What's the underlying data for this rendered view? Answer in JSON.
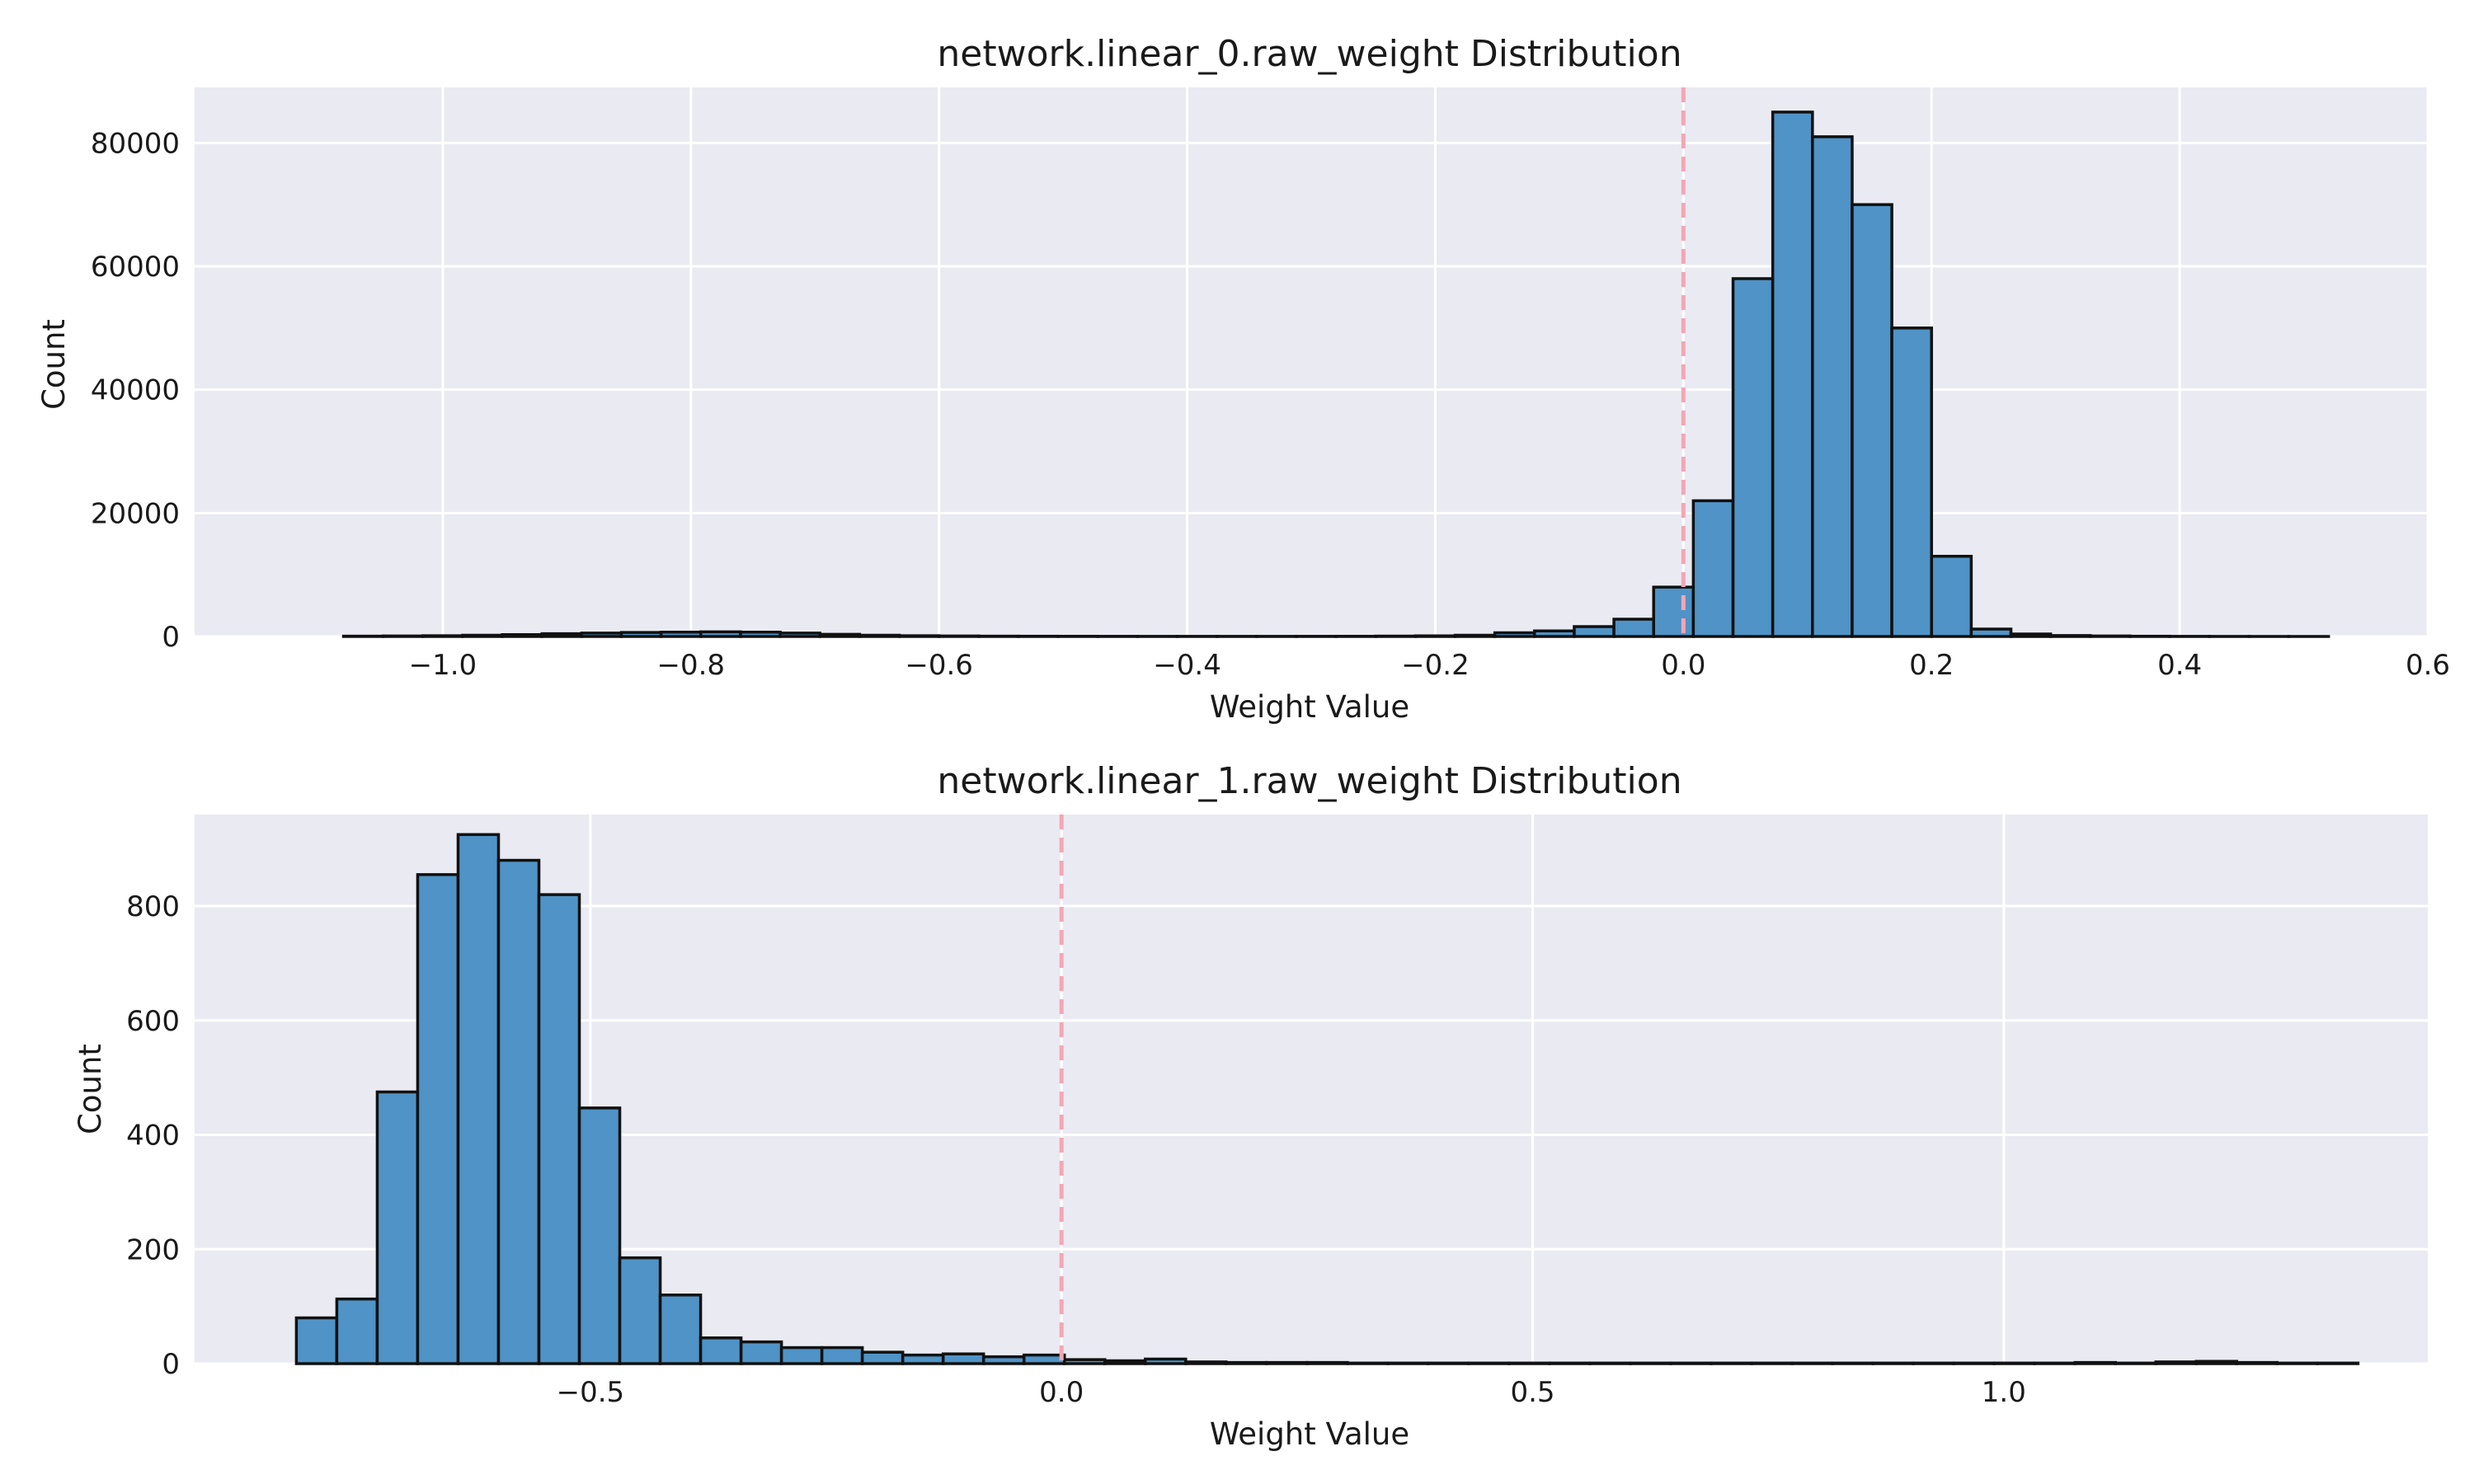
{
  "chart_data": [
    {
      "type": "bar",
      "title": "network.linear_0.raw_weight Distribution",
      "xlabel": "Weight Value",
      "ylabel": "Count",
      "xlim": [
        -1.2,
        0.6
      ],
      "ylim": [
        0,
        89000
      ],
      "xticks": [
        -1.0,
        -0.8,
        -0.6,
        -0.4,
        -0.2,
        0.0,
        0.2,
        0.4,
        0.6
      ],
      "xtick_labels": [
        "−1.0",
        "−0.8",
        "−0.6",
        "−0.4",
        "−0.2",
        "0.0",
        "0.2",
        "0.4",
        "0.6"
      ],
      "yticks": [
        0,
        20000,
        40000,
        60000,
        80000
      ],
      "ytick_labels": [
        "0",
        "20000",
        "40000",
        "60000",
        "80000"
      ],
      "grid": true,
      "reference_line": {
        "x": 0.0,
        "style": "dashed",
        "color": "#f4a6b4"
      },
      "bar_color": "#4f93c7",
      "bins": {
        "start": -1.08,
        "width": 0.032,
        "values": [
          50,
          80,
          120,
          200,
          300,
          450,
          550,
          650,
          700,
          750,
          700,
          550,
          350,
          200,
          120,
          80,
          50,
          40,
          30,
          25,
          20,
          20,
          20,
          20,
          25,
          30,
          60,
          100,
          200,
          600,
          900,
          1600,
          2800,
          8000,
          22000,
          58000,
          85000,
          81000,
          70000,
          50000,
          13000,
          1200,
          400,
          150,
          80,
          40,
          20,
          10,
          5,
          2
        ]
      }
    },
    {
      "type": "bar",
      "title": "network.linear_1.raw_weight Distribution",
      "xlabel": "Weight Value",
      "ylabel": "Count",
      "xlim": [
        -0.92,
        1.45
      ],
      "ylim": [
        0,
        960
      ],
      "xticks": [
        -0.5,
        0.0,
        0.5,
        1.0
      ],
      "xtick_labels": [
        "−0.5",
        "0.0",
        "0.5",
        "1.0"
      ],
      "yticks": [
        0,
        200,
        400,
        600,
        800
      ],
      "ytick_labels": [
        "0",
        "200",
        "400",
        "600",
        "800"
      ],
      "grid": true,
      "reference_line": {
        "x": 0.0,
        "style": "dashed",
        "color": "#f4a6b4"
      },
      "bar_color": "#4f93c7",
      "bins": {
        "start": -0.812,
        "width": 0.0429,
        "values": [
          80,
          113,
          475,
          855,
          925,
          880,
          820,
          447,
          185,
          120,
          45,
          38,
          28,
          28,
          20,
          15,
          17,
          12,
          15,
          7,
          5,
          8,
          3,
          2,
          2,
          2,
          1,
          1,
          1,
          1,
          1,
          1,
          1,
          1,
          1,
          1,
          1,
          1,
          1,
          1,
          1,
          1,
          1,
          1,
          2,
          1,
          3,
          4,
          2,
          1,
          1
        ]
      }
    }
  ]
}
